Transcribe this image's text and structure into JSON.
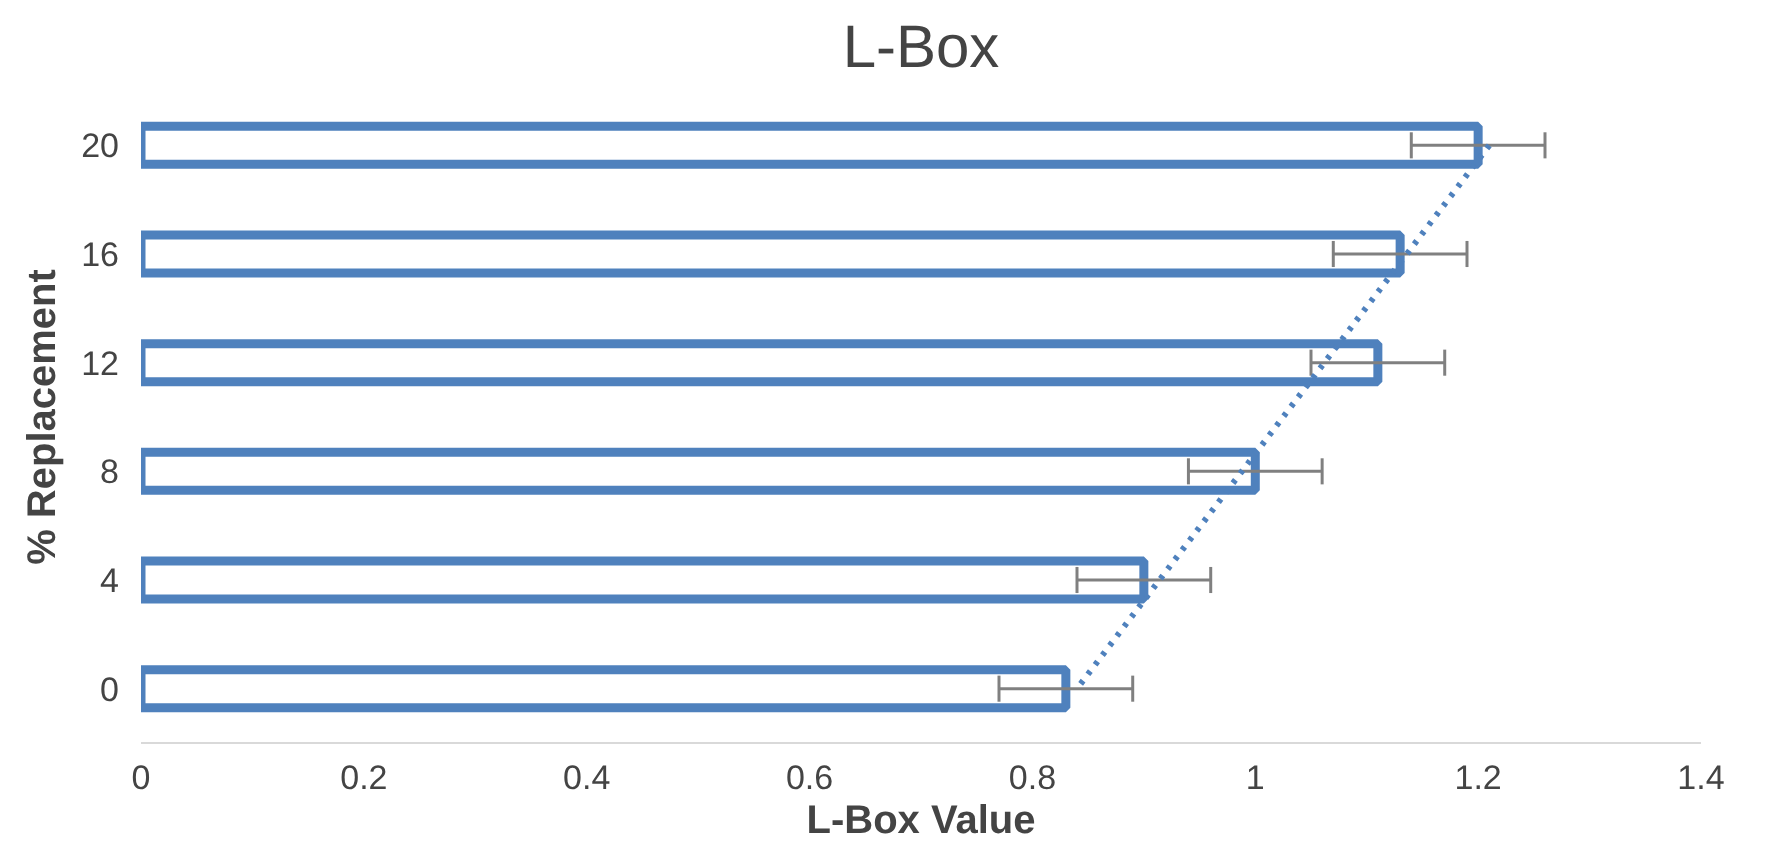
{
  "chart_data": {
    "type": "bar",
    "orientation": "horizontal",
    "title": "L-Box",
    "xlabel": "L-Box Value",
    "ylabel": "% Replacement",
    "categories": [
      "20",
      "16",
      "12",
      "8",
      "4",
      "0"
    ],
    "series": [
      {
        "color": "#4f81bd",
        "values": [
          1.2,
          1.13,
          1.11,
          1.0,
          0.9,
          0.83
        ],
        "errors": [
          0.06,
          0.06,
          0.06,
          0.06,
          0.06,
          0.06
        ]
      },
      {
        "type": "line",
        "color": "#4f81bd",
        "line_style": "dotted",
        "values": [
          1.21,
          1.136,
          1.062,
          0.988,
          0.914,
          0.84
        ]
      }
    ],
    "xlim": [
      0,
      1.4
    ],
    "xticks": [
      0,
      0.2,
      0.4,
      0.6,
      0.8,
      1,
      1.2,
      1.4
    ],
    "grid": false
  }
}
